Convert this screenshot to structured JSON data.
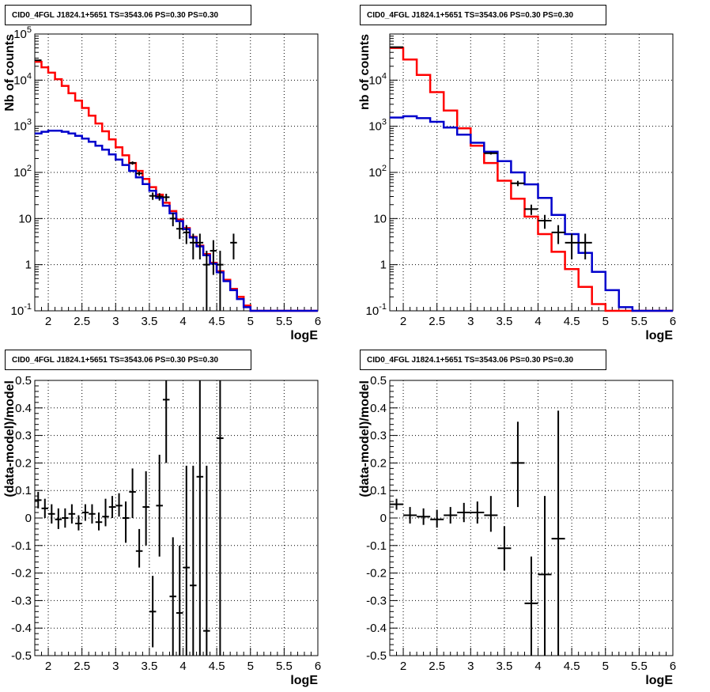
{
  "page": {
    "titles": [
      "CID0_4FGL J1824.1+5651 TS=3543.06 PS=0.30 PS=0.30",
      "CID0_4FGL J1824.1+5651 TS=3543.06 PS=0.30 PS=0.30",
      "CID0_4FGL J1824.1+5651 TS=3543.06 PS=0.30 PS=0.30",
      "CID0_4FGL J1824.1+5651 TS=3543.06 PS=0.30 PS=0.30"
    ]
  },
  "colors": {
    "model_total": "#ff0000",
    "model_source": "#0000cc",
    "data": "#000000",
    "grid": "#000000"
  },
  "chart_data": [
    {
      "type": "line",
      "title": "CID0_4FGL J1824.1+5651 TS=3543.06 PS=0.30 PS=0.30",
      "xlabel": "logE",
      "ylabel": "Nb of counts",
      "xlim": [
        1.8,
        6.0
      ],
      "ylim": [
        0.1,
        100000
      ],
      "yscale": "log",
      "grid": true,
      "xticks": [
        "2",
        "2.5",
        "3",
        "3.5",
        "4",
        "4.5",
        "5",
        "5.5",
        "6"
      ],
      "yticks": [
        "10^-1",
        "1",
        "10",
        "10^2",
        "10^3",
        "10^4",
        "10^5"
      ],
      "bin_width": 0.1,
      "series": [
        {
          "role": "total-model",
          "color": "#ff0000",
          "style": "histogram",
          "x": [
            1.8,
            1.9,
            2.0,
            2.1,
            2.2,
            2.3,
            2.4,
            2.5,
            2.6,
            2.7,
            2.8,
            2.9,
            3.0,
            3.1,
            3.2,
            3.3,
            3.4,
            3.5,
            3.6,
            3.7,
            3.8,
            3.9,
            4.0,
            4.1,
            4.2,
            4.3,
            4.4,
            4.5,
            4.6,
            4.7,
            4.8,
            4.9,
            5.0,
            5.1,
            5.2,
            5.3,
            5.4,
            5.5,
            5.6,
            5.7,
            5.8,
            5.9
          ],
          "values": [
            25000,
            19000,
            14500,
            10500,
            7500,
            5200,
            3600,
            2500,
            1700,
            1150,
            780,
            520,
            350,
            235,
            160,
            108,
            72,
            48,
            33,
            22,
            14.5,
            9.5,
            6.2,
            4.0,
            2.6,
            1.7,
            1.1,
            0.72,
            0.47,
            0.3,
            0.2,
            0.13,
            0.1,
            0.1,
            0.1,
            0.1,
            0.1,
            0.1,
            0.1,
            0.1,
            0.1,
            0.1
          ]
        },
        {
          "role": "source-model",
          "color": "#0000cc",
          "style": "histogram",
          "x": [
            1.8,
            1.9,
            2.0,
            2.1,
            2.2,
            2.3,
            2.4,
            2.5,
            2.6,
            2.7,
            2.8,
            2.9,
            3.0,
            3.1,
            3.2,
            3.3,
            3.4,
            3.5,
            3.6,
            3.7,
            3.8,
            3.9,
            4.0,
            4.1,
            4.2,
            4.3,
            4.4,
            4.5,
            4.6,
            4.7,
            4.8,
            4.9,
            5.0,
            5.1,
            5.2,
            5.3,
            5.4,
            5.5,
            5.6,
            5.7,
            5.8,
            5.9
          ],
          "values": [
            700,
            760,
            800,
            800,
            760,
            700,
            620,
            540,
            460,
            380,
            310,
            245,
            190,
            145,
            108,
            78,
            56,
            40,
            28,
            19,
            13,
            8.8,
            5.9,
            3.9,
            2.5,
            1.6,
            1.05,
            0.68,
            0.44,
            0.28,
            0.18,
            0.12,
            0.1,
            0.1,
            0.1,
            0.1,
            0.1,
            0.1,
            0.1,
            0.1,
            0.1,
            0.1
          ]
        },
        {
          "role": "data",
          "color": "#000000",
          "style": "errorbars",
          "points": [
            {
              "x": 1.85,
              "y": 27000,
              "err": 170
            },
            {
              "x": 3.25,
              "y": 160,
              "err": 13
            },
            {
              "x": 3.35,
              "y": 95,
              "err": 10
            },
            {
              "x": 3.55,
              "y": 31,
              "err": 5.6
            },
            {
              "x": 3.65,
              "y": 30,
              "err": 5.5
            },
            {
              "x": 3.75,
              "y": 29,
              "err": 5.4
            },
            {
              "x": 3.85,
              "y": 10,
              "err": 3.2
            },
            {
              "x": 3.95,
              "y": 6,
              "err": 2.4
            },
            {
              "x": 4.05,
              "y": 5,
              "err": 2.2
            },
            {
              "x": 4.15,
              "y": 3,
              "err": 1.7
            },
            {
              "x": 4.25,
              "y": 3,
              "err": 1.7
            },
            {
              "x": 4.35,
              "y": 1,
              "err": 1
            },
            {
              "x": 4.45,
              "y": 2,
              "err": 1.4
            },
            {
              "x": 4.55,
              "y": 1,
              "err": 1
            },
            {
              "x": 4.75,
              "y": 3,
              "err": 1.7
            }
          ]
        }
      ]
    },
    {
      "type": "line",
      "title": "CID0_4FGL J1824.1+5651 TS=3543.06 PS=0.30 PS=0.30",
      "xlabel": "logE",
      "ylabel": "nb of counts",
      "xlim": [
        1.8,
        6.0
      ],
      "ylim": [
        0.1,
        100000
      ],
      "yscale": "log",
      "grid": true,
      "xticks": [
        "2",
        "2.5",
        "3",
        "3.5",
        "4",
        "4.5",
        "5",
        "5.5",
        "6"
      ],
      "yticks": [
        "10^-1",
        "1",
        "10",
        "10^2",
        "10^3",
        "10^4"
      ],
      "bin_width": 0.2,
      "series": [
        {
          "role": "total-model",
          "color": "#ff0000",
          "style": "histogram",
          "x": [
            1.8,
            2.0,
            2.2,
            2.4,
            2.6,
            2.8,
            3.0,
            3.2,
            3.4,
            3.6,
            3.8,
            4.0,
            4.2,
            4.4,
            4.6,
            4.8,
            5.0,
            5.2,
            5.4,
            5.6,
            5.8
          ],
          "values": [
            50000,
            28000,
            13000,
            5500,
            2200,
            900,
            380,
            160,
            66,
            27,
            11,
            4.6,
            1.9,
            0.8,
            0.33,
            0.14,
            0.1,
            0.1,
            0.1,
            0.1,
            0.1
          ]
        },
        {
          "role": "source-model",
          "color": "#0000cc",
          "style": "histogram",
          "x": [
            1.8,
            2.0,
            2.2,
            2.4,
            2.6,
            2.8,
            3.0,
            3.2,
            3.4,
            3.6,
            3.8,
            4.0,
            4.2,
            4.4,
            4.6,
            4.8,
            5.0,
            5.2,
            5.4,
            5.6,
            5.8
          ],
          "values": [
            1550,
            1650,
            1500,
            1250,
            940,
            660,
            440,
            280,
            175,
            100,
            55,
            28,
            12,
            4.6,
            1.8,
            0.7,
            0.28,
            0.12,
            0.1,
            0.1,
            0.1
          ]
        },
        {
          "role": "data",
          "color": "#000000",
          "style": "errorbars",
          "points": [
            {
              "x": 1.9,
              "y": 52000,
              "err": 230
            },
            {
              "x": 3.3,
              "y": 260,
              "err": 16
            },
            {
              "x": 3.7,
              "y": 58,
              "err": 7.6
            },
            {
              "x": 3.9,
              "y": 16,
              "err": 4
            },
            {
              "x": 4.1,
              "y": 9,
              "err": 3
            },
            {
              "x": 4.3,
              "y": 5,
              "err": 2.2
            },
            {
              "x": 4.5,
              "y": 3,
              "err": 1.7
            },
            {
              "x": 4.7,
              "y": 3,
              "err": 1.7
            }
          ]
        }
      ]
    },
    {
      "type": "scatter",
      "title": "CID0_4FGL J1824.1+5651 TS=3543.06 PS=0.30 PS=0.30",
      "xlabel": "logE",
      "ylabel": "(data-model)/model",
      "xlim": [
        1.8,
        6.0
      ],
      "ylim": [
        -0.5,
        0.5
      ],
      "grid": true,
      "xticks": [
        "2",
        "2.5",
        "3",
        "3.5",
        "4",
        "4.5",
        "5",
        "5.5",
        "6"
      ],
      "yticks": [
        "-0.5",
        "-0.4",
        "-0.3",
        "-0.2",
        "-0.1",
        "0",
        "0.1",
        "0.2",
        "0.3",
        "0.4",
        "0.5"
      ],
      "series": [
        {
          "role": "residuals",
          "color": "#000000",
          "style": "errorbars",
          "points": [
            {
              "x": 1.85,
              "y": 0.065,
              "lo": 0.035,
              "hi": 0.095
            },
            {
              "x": 1.95,
              "y": 0.035,
              "lo": 0.0,
              "hi": 0.07
            },
            {
              "x": 2.05,
              "y": 0.015,
              "lo": -0.02,
              "hi": 0.05
            },
            {
              "x": 2.15,
              "y": -0.005,
              "lo": -0.04,
              "hi": 0.035
            },
            {
              "x": 2.25,
              "y": 0.0,
              "lo": -0.035,
              "hi": 0.035
            },
            {
              "x": 2.35,
              "y": 0.015,
              "lo": -0.02,
              "hi": 0.05
            },
            {
              "x": 2.45,
              "y": -0.02,
              "lo": -0.045,
              "hi": 0.01
            },
            {
              "x": 2.55,
              "y": 0.02,
              "lo": -0.01,
              "hi": 0.05
            },
            {
              "x": 2.65,
              "y": 0.015,
              "lo": -0.02,
              "hi": 0.05
            },
            {
              "x": 2.75,
              "y": -0.015,
              "lo": -0.045,
              "hi": 0.02
            },
            {
              "x": 2.85,
              "y": 0.005,
              "lo": -0.03,
              "hi": 0.07
            },
            {
              "x": 2.95,
              "y": 0.04,
              "lo": 0.0,
              "hi": 0.08
            },
            {
              "x": 3.05,
              "y": 0.045,
              "lo": 0.005,
              "hi": 0.09
            },
            {
              "x": 3.15,
              "y": 0.0,
              "lo": -0.09,
              "hi": 0.06
            },
            {
              "x": 3.25,
              "y": 0.095,
              "lo": 0.0,
              "hi": 0.18
            },
            {
              "x": 3.35,
              "y": -0.12,
              "lo": -0.18,
              "hi": -0.04
            },
            {
              "x": 3.45,
              "y": 0.04,
              "lo": -0.1,
              "hi": 0.17
            },
            {
              "x": 3.55,
              "y": -0.34,
              "lo": -0.47,
              "hi": -0.21
            },
            {
              "x": 3.65,
              "y": 0.045,
              "lo": -0.14,
              "hi": 0.23
            },
            {
              "x": 3.75,
              "y": 0.43,
              "lo": 0.2,
              "hi": 0.5
            },
            {
              "x": 3.85,
              "y": -0.285,
              "lo": -0.5,
              "hi": -0.07
            },
            {
              "x": 3.95,
              "y": -0.345,
              "lo": -0.5,
              "hi": -0.1
            },
            {
              "x": 4.05,
              "y": -0.18,
              "lo": -0.5,
              "hi": 0.19
            },
            {
              "x": 4.15,
              "y": -0.245,
              "lo": -0.5,
              "hi": 0.19
            },
            {
              "x": 4.25,
              "y": 0.15,
              "lo": -0.5,
              "hi": 0.5
            },
            {
              "x": 4.35,
              "y": -0.41,
              "lo": -0.5,
              "hi": 0.19
            },
            {
              "x": 4.55,
              "y": 0.29,
              "lo": -0.5,
              "hi": 0.5
            }
          ]
        }
      ]
    },
    {
      "type": "scatter",
      "title": "CID0_4FGL J1824.1+5651 TS=3543.06 PS=0.30 PS=0.30",
      "xlabel": "logE",
      "ylabel": "(data-model)/model",
      "xlim": [
        1.8,
        6.0
      ],
      "ylim": [
        -0.5,
        0.5
      ],
      "grid": true,
      "xticks": [
        "2",
        "2.5",
        "3",
        "3.5",
        "4",
        "4.5",
        "5",
        "5.5",
        "6"
      ],
      "yticks": [
        "-0.5",
        "-0.4",
        "-0.3",
        "-0.2",
        "-0.1",
        "0",
        "0.1",
        "0.2",
        "0.3",
        "0.4",
        "0.5"
      ],
      "series": [
        {
          "role": "residuals",
          "color": "#000000",
          "style": "errorbars",
          "points": [
            {
              "x": 1.9,
              "y": 0.05,
              "lo": 0.03,
              "hi": 0.07
            },
            {
              "x": 2.1,
              "y": 0.01,
              "lo": -0.02,
              "hi": 0.04
            },
            {
              "x": 2.3,
              "y": 0.005,
              "lo": -0.025,
              "hi": 0.035
            },
            {
              "x": 2.5,
              "y": -0.005,
              "lo": -0.035,
              "hi": 0.03
            },
            {
              "x": 2.7,
              "y": 0.01,
              "lo": -0.02,
              "hi": 0.04
            },
            {
              "x": 2.9,
              "y": 0.02,
              "lo": -0.015,
              "hi": 0.055
            },
            {
              "x": 3.1,
              "y": 0.02,
              "lo": -0.02,
              "hi": 0.06
            },
            {
              "x": 3.3,
              "y": 0.01,
              "lo": -0.05,
              "hi": 0.08
            },
            {
              "x": 3.5,
              "y": -0.11,
              "lo": -0.19,
              "hi": -0.03
            },
            {
              "x": 3.7,
              "y": 0.2,
              "lo": 0.04,
              "hi": 0.35
            },
            {
              "x": 3.9,
              "y": -0.31,
              "lo": -0.5,
              "hi": -0.14
            },
            {
              "x": 4.1,
              "y": -0.205,
              "lo": -0.5,
              "hi": 0.08
            },
            {
              "x": 4.3,
              "y": -0.075,
              "lo": -0.5,
              "hi": 0.39
            }
          ]
        }
      ]
    }
  ]
}
